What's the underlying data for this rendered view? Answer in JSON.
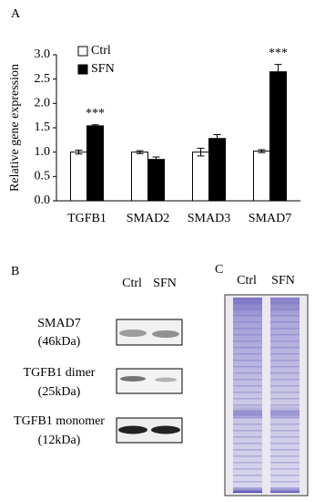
{
  "chart_data": {
    "type": "bar",
    "panel_label": "A",
    "ylabel": "Relative gene expression",
    "categories": [
      "TGFB1",
      "SMAD2",
      "SMAD3",
      "SMAD7"
    ],
    "series": [
      {
        "name": "Ctrl",
        "color": "#ffffff",
        "values": [
          1.0,
          1.0,
          1.0,
          1.02
        ],
        "errors": [
          0.04,
          0.03,
          0.08,
          0.03
        ]
      },
      {
        "name": "SFN",
        "color": "#000000",
        "values": [
          1.54,
          0.85,
          1.28,
          2.65
        ],
        "errors": [
          0.02,
          0.05,
          0.08,
          0.15
        ]
      }
    ],
    "ylim": [
      0,
      3.0
    ],
    "yticks": [
      {
        "value": 0,
        "label": "0.0"
      },
      {
        "value": 0.5,
        "label": "0.5"
      },
      {
        "value": 1.0,
        "label": "1.0"
      },
      {
        "value": 1.5,
        "label": "1.5"
      },
      {
        "value": 2.0,
        "label": "2.0"
      },
      {
        "value": 2.5,
        "label": "2.5"
      },
      {
        "value": 3.0,
        "label": "3.0"
      }
    ],
    "grid": false,
    "legend": "top-left",
    "annotations": [
      {
        "text": "***",
        "x": "TGFB1"
      },
      {
        "text": "***",
        "x": "SMAD7"
      }
    ]
  },
  "panel_b": {
    "label": "B",
    "columns": [
      "Ctrl",
      "SFN"
    ],
    "rows": [
      {
        "name": "SMAD7",
        "size": "(46kDa)"
      },
      {
        "name": "TGFB1 dimer",
        "size": "(25kDa)"
      },
      {
        "name": "TGFB1 monomer",
        "size": "(12kDa)"
      }
    ]
  },
  "panel_c": {
    "label": "C",
    "columns": [
      "Ctrl",
      "SFN"
    ]
  }
}
